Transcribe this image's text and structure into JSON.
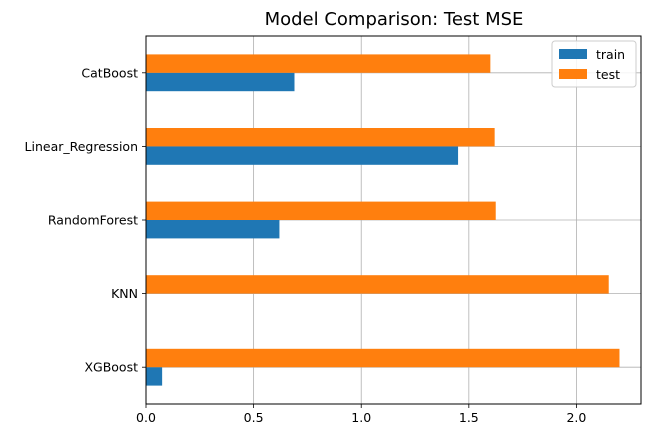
{
  "chart_data": {
    "type": "bar",
    "orientation": "horizontal",
    "title": "Model Comparison: Test MSE",
    "xlabel": "",
    "ylabel": "",
    "categories": [
      "CatBoost",
      "Linear_Regression",
      "RandomForest",
      "KNN",
      "XGBoost"
    ],
    "series": [
      {
        "name": "train",
        "color": "#1f77b4",
        "values": [
          0.69,
          1.45,
          0.62,
          0.0,
          0.075
        ]
      },
      {
        "name": "test",
        "color": "#ff7f0e",
        "values": [
          1.6,
          1.62,
          1.625,
          2.15,
          2.2
        ]
      }
    ],
    "xlim": [
      0,
      2.3
    ],
    "xticks": [
      "0.0",
      "0.5",
      "1.0",
      "1.5",
      "2.0"
    ],
    "xtick_values": [
      0.0,
      0.5,
      1.0,
      1.5,
      2.0
    ],
    "grid": true,
    "legend_position": "top-right"
  }
}
